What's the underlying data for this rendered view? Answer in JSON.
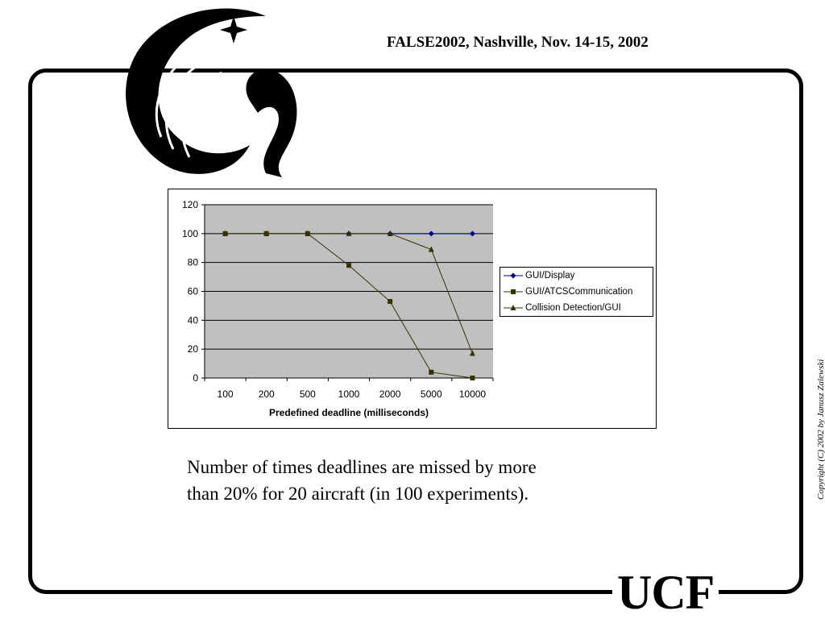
{
  "header": {
    "title": "FALSE2002, Nashville,  Nov. 14-15, 2002"
  },
  "logo": {
    "icon": "pegasus-logo-icon"
  },
  "caption": {
    "line1": "Number of times deadlines are missed by more",
    "line2": "than 20% for 20 aircraft (in 100 experiments)."
  },
  "copyright": "Copyright (C) 2002 by Janusz Zalewski",
  "footer_logo": "UCF",
  "chart_data": {
    "type": "line",
    "categories": [
      "100",
      "200",
      "500",
      "1000",
      "2000",
      "5000",
      "10000"
    ],
    "xlabel": "Predefined deadline (milliseconds)",
    "ylabel": "",
    "ylim": [
      0,
      120
    ],
    "yticks": [
      0,
      20,
      40,
      60,
      80,
      100,
      120
    ],
    "grid": true,
    "legend": "right",
    "plot_bg": "#c0c0c0",
    "series": [
      {
        "name": "GUI/Display",
        "values": [
          100,
          100,
          100,
          100,
          100,
          100,
          100
        ],
        "color": "#000080",
        "marker": "diamond"
      },
      {
        "name": "GUI/ATCSCommunication",
        "values": [
          100,
          100,
          100,
          78,
          53,
          4,
          0
        ],
        "color": "#333300",
        "marker": "square"
      },
      {
        "name": "Collision Detection/GUI",
        "values": [
          100,
          100,
          100,
          100,
          100,
          89,
          17
        ],
        "color": "#333300",
        "marker": "triangle"
      }
    ]
  }
}
